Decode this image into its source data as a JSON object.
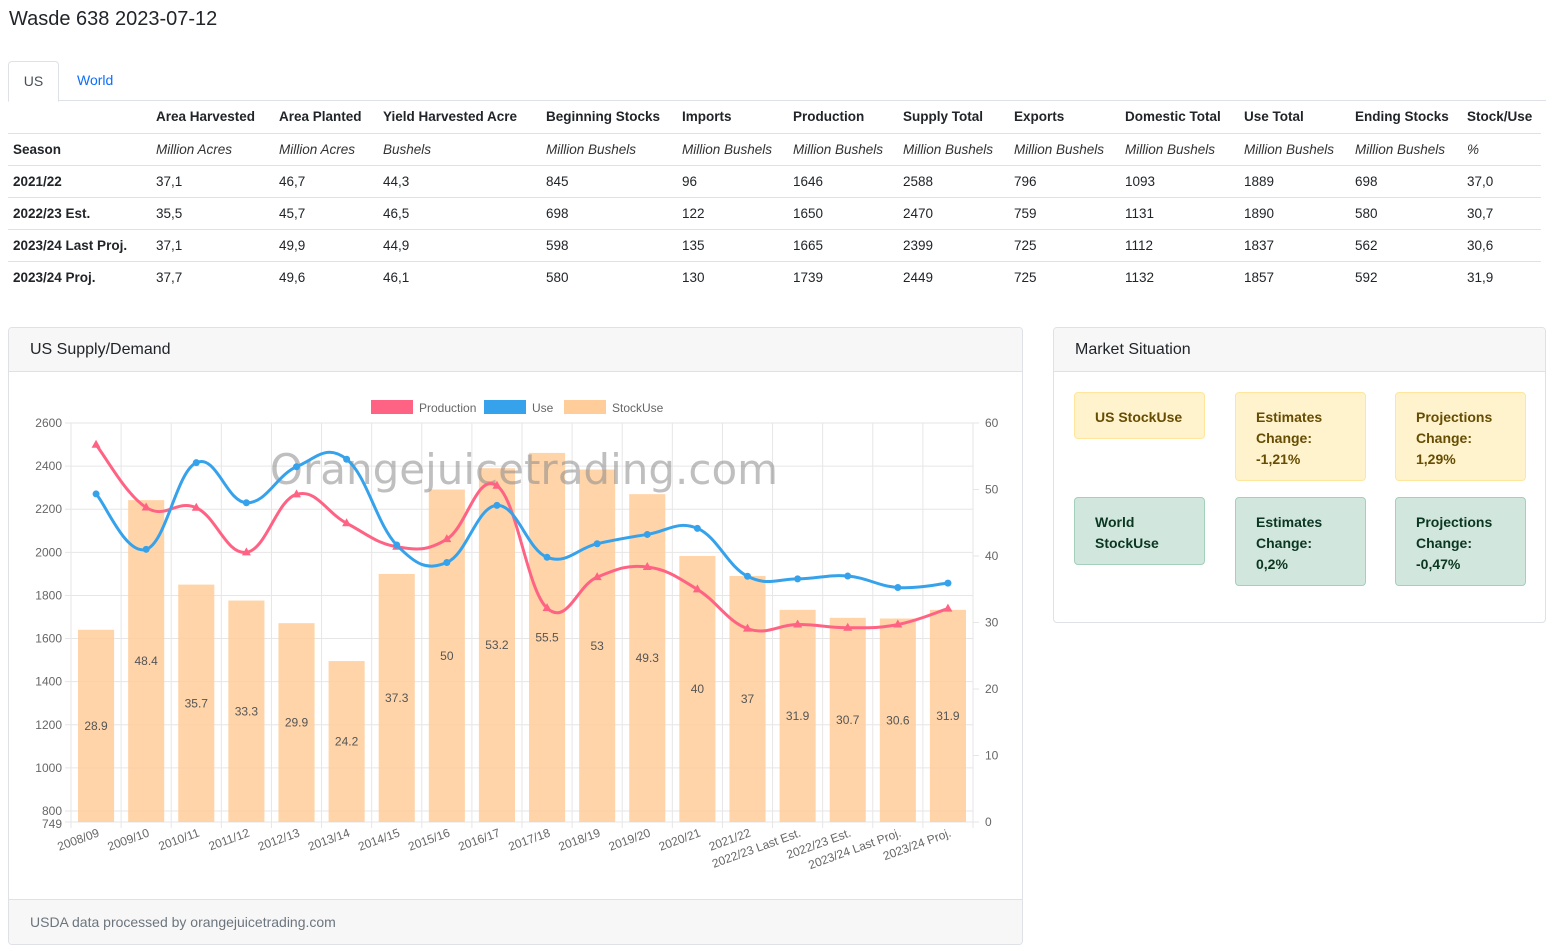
{
  "page": {
    "title": "Wasde 638 2023-07-12"
  },
  "tabs": [
    {
      "label": "US"
    },
    {
      "label": "World"
    }
  ],
  "table": {
    "headers": [
      "",
      "Area Harvested",
      "Area Planted",
      "Yield Harvested Acre",
      "Beginning Stocks",
      "Imports",
      "Production",
      "Supply Total",
      "Exports",
      "Domestic Total",
      "Use Total",
      "Ending Stocks",
      "Stock/Use"
    ],
    "units": [
      "Season",
      "Million Acres",
      "Million Acres",
      "Bushels",
      "Million Bushels",
      "Million Bushels",
      "Million Bushels",
      "Million Bushels",
      "Million Bushels",
      "Million Bushels",
      "Million Bushels",
      "Million Bushels",
      "%"
    ],
    "rows": [
      [
        "2021/22",
        "37,1",
        "46,7",
        "44,3",
        "845",
        "96",
        "1646",
        "2588",
        "796",
        "1093",
        "1889",
        "698",
        "37,0"
      ],
      [
        "2022/23 Est.",
        "35,5",
        "45,7",
        "46,5",
        "698",
        "122",
        "1650",
        "2470",
        "759",
        "1131",
        "1890",
        "580",
        "30,7"
      ],
      [
        "2023/24 Last Proj.",
        "37,1",
        "49,9",
        "44,9",
        "598",
        "135",
        "1665",
        "2399",
        "725",
        "1112",
        "1837",
        "562",
        "30,6"
      ],
      [
        "2023/24 Proj.",
        "37,7",
        "49,6",
        "46,1",
        "580",
        "130",
        "1739",
        "2449",
        "725",
        "1132",
        "1857",
        "592",
        "31,9"
      ]
    ]
  },
  "chart_card": {
    "title": "US Supply/Demand",
    "footer": "USDA data processed by orangejuicetrading.com",
    "watermark": "Orangejuicetrading.com"
  },
  "market": {
    "title": "Market Situation",
    "us_label": "US StockUse",
    "us_est": {
      "label": "Estimates Change:",
      "value": "-1,21%"
    },
    "us_proj": {
      "label": "Projections Change:",
      "value": "1,29%"
    },
    "world_label": "World StockUse",
    "world_est": {
      "label": "Estimates Change:",
      "value": "0,2%"
    },
    "world_proj": {
      "label": "Projections Change:",
      "value": "-0,47%"
    }
  },
  "chart_data": {
    "type": "bar",
    "categories": [
      "2008/09",
      "2009/10",
      "2010/11",
      "2011/12",
      "2012/13",
      "2013/14",
      "2014/15",
      "2015/16",
      "2016/17",
      "2017/18",
      "2018/19",
      "2019/20",
      "2020/21",
      "2021/22",
      "2022/23 Last Est.",
      "2022/23 Est.",
      "2023/24 Last Proj.",
      "2023/24 Proj."
    ],
    "series": [
      {
        "name": "Production",
        "type": "line",
        "axis": "left",
        "color": "#ff6384",
        "values": [
          2499,
          2208,
          2207,
          2000,
          2269,
          2135,
          2026,
          2061,
          2309,
          1741,
          1885,
          1932,
          1828,
          1646,
          1665,
          1650,
          1665,
          1739
        ]
      },
      {
        "name": "Use",
        "type": "line",
        "axis": "left",
        "color": "#36a2eb",
        "values": [
          2271,
          2014,
          2416,
          2230,
          2397,
          2432,
          2034,
          1953,
          2218,
          1977,
          2040,
          2083,
          2111,
          1889,
          1877,
          1890,
          1837,
          1857
        ]
      },
      {
        "name": "StockUse",
        "type": "bar",
        "axis": "right",
        "color": "#ffcd9a",
        "values": [
          28.9,
          48.4,
          35.7,
          33.3,
          29.9,
          24.2,
          37.3,
          50,
          53.2,
          55.5,
          53,
          49.3,
          40,
          37,
          31.9,
          30.7,
          30.6,
          31.9
        ]
      }
    ],
    "left_axis": {
      "min": 749,
      "max": 2600,
      "ticks": [
        749,
        800,
        1000,
        1200,
        1400,
        1600,
        1800,
        2000,
        2200,
        2400,
        2600
      ]
    },
    "right_axis": {
      "min": 0,
      "max": 60,
      "ticks": [
        0,
        10,
        20,
        30,
        40,
        50,
        60
      ]
    },
    "legend": "top",
    "grid": true
  }
}
